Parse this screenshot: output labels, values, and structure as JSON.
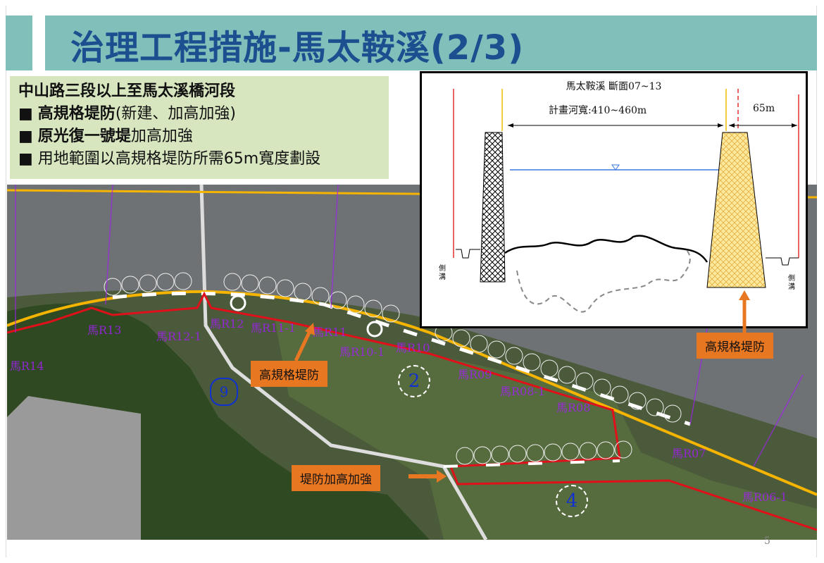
{
  "title": "治理工程措施-馬太鞍溪(2/3)",
  "info": {
    "heading": "中山路三段以上至馬太溪橋河段",
    "bullets": [
      {
        "bold": "高規格堤防",
        "text": "(新建、加高加強)"
      },
      {
        "bold": "原光復一號堤",
        "text": "加高加強"
      },
      {
        "bold": "",
        "text": "用地範圍以高規格堤防所需65m寬度劃設"
      }
    ],
    "bullet_symbol": "■"
  },
  "section": {
    "title": "馬太鞍溪 斷面07~13",
    "width_label": "計畫河寬:410~460m",
    "right_width": "65m",
    "ditch_left": "側溝",
    "ditch_right": "側溝"
  },
  "callouts": {
    "levee_right": "高規格堤防",
    "levee_center": "高規格堤防",
    "raise": "堤防加高加強"
  },
  "map_labels": [
    "馬R14",
    "馬R13",
    "馬R12-1",
    "馬R12",
    "馬R11-1",
    "馬R11",
    "馬R10-1",
    "馬R10",
    "馬R09",
    "馬R08-1",
    "馬R08",
    "馬R07",
    "馬R06-1"
  ],
  "zones": [
    "2",
    "4",
    "9"
  ],
  "page_number": "5",
  "colors": {
    "title_bar": "#7fc0ba",
    "title_text": "#1b4f8f",
    "callout": "#e87722",
    "levee": "#f5b400",
    "boundary": "#e0101a",
    "label": "#a020f0"
  }
}
